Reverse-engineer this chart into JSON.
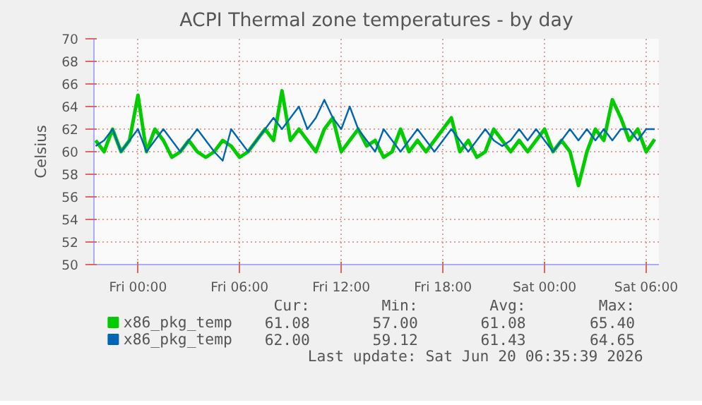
{
  "chart_data": {
    "type": "line",
    "title": "ACPI Thermal zone temperatures - by day",
    "ylabel": "Celsius",
    "x": [
      "2026-06-18T21:30",
      "2026-06-18T22:00",
      "2026-06-18T22:30",
      "2026-06-18T23:00",
      "2026-06-18T23:30",
      "2026-06-19T00:00",
      "2026-06-19T00:30",
      "2026-06-19T01:00",
      "2026-06-19T01:30",
      "2026-06-19T02:00",
      "2026-06-19T02:30",
      "2026-06-19T03:00",
      "2026-06-19T03:30",
      "2026-06-19T04:00",
      "2026-06-19T04:30",
      "2026-06-19T05:00",
      "2026-06-19T05:30",
      "2026-06-19T06:00",
      "2026-06-19T06:30",
      "2026-06-19T07:00",
      "2026-06-19T07:30",
      "2026-06-19T08:00",
      "2026-06-19T08:30",
      "2026-06-19T09:00",
      "2026-06-19T09:30",
      "2026-06-19T10:00",
      "2026-06-19T10:30",
      "2026-06-19T11:00",
      "2026-06-19T11:30",
      "2026-06-19T12:00",
      "2026-06-19T12:30",
      "2026-06-19T13:00",
      "2026-06-19T13:30",
      "2026-06-19T14:00",
      "2026-06-19T14:30",
      "2026-06-19T15:00",
      "2026-06-19T15:30",
      "2026-06-19T16:00",
      "2026-06-19T16:30",
      "2026-06-19T17:00",
      "2026-06-19T17:30",
      "2026-06-19T18:00",
      "2026-06-19T18:30",
      "2026-06-19T19:00",
      "2026-06-19T19:30",
      "2026-06-19T20:00",
      "2026-06-19T20:30",
      "2026-06-19T21:00",
      "2026-06-19T21:30",
      "2026-06-19T22:00",
      "2026-06-19T22:30",
      "2026-06-19T23:00",
      "2026-06-19T23:30",
      "2026-06-20T00:00",
      "2026-06-20T00:30",
      "2026-06-20T01:00",
      "2026-06-20T01:30",
      "2026-06-20T02:00",
      "2026-06-20T02:30",
      "2026-06-20T03:00",
      "2026-06-20T03:30",
      "2026-06-20T04:00",
      "2026-06-20T04:30",
      "2026-06-20T05:00",
      "2026-06-20T05:30",
      "2026-06-20T06:00",
      "2026-06-20T06:30"
    ],
    "series": [
      {
        "name": "x86_pkg_temp",
        "color": "#00cc00",
        "values": [
          61,
          60,
          62,
          60,
          61,
          65,
          60,
          62,
          61,
          59.5,
          60,
          61,
          60,
          59.5,
          60,
          61,
          60.5,
          59.5,
          60,
          61,
          62,
          61,
          65.4,
          61,
          62,
          61,
          60,
          62,
          63,
          60,
          61,
          62,
          60.5,
          61,
          59.5,
          60,
          62,
          60,
          61,
          60,
          61,
          62,
          63,
          60,
          61,
          59.5,
          60,
          62,
          61,
          60,
          61,
          60,
          61,
          62,
          60,
          61,
          60,
          57,
          60,
          62,
          61,
          64.6,
          63,
          61,
          62,
          60,
          61.1
        ]
      },
      {
        "name": "x86_pkg_temp",
        "color": "#0066b3",
        "values": [
          60.5,
          61,
          62,
          60,
          61,
          62,
          60,
          61,
          62,
          61,
          60,
          61,
          62,
          61,
          60,
          59.2,
          62,
          61,
          60,
          61,
          62,
          63,
          62,
          63,
          64,
          62,
          63,
          64.6,
          63,
          62,
          64,
          62,
          61,
          60,
          62,
          61,
          60,
          61,
          62,
          61,
          60,
          61,
          62,
          61,
          60,
          61,
          62,
          61,
          60.5,
          61,
          62,
          61,
          62,
          61,
          60,
          61,
          62,
          61,
          62,
          61,
          62,
          61,
          62,
          62,
          61,
          62,
          62
        ]
      }
    ],
    "xlim": [
      "2026-06-18T21:24",
      "2026-06-20T06:45"
    ],
    "xticks": [
      {
        "value": "2026-06-19T00:00",
        "label": "Fri 00:00"
      },
      {
        "value": "2026-06-19T06:00",
        "label": "Fri 06:00"
      },
      {
        "value": "2026-06-19T12:00",
        "label": "Fri 12:00"
      },
      {
        "value": "2026-06-19T18:00",
        "label": "Fri 18:00"
      },
      {
        "value": "2026-06-20T00:00",
        "label": "Sat 00:00"
      },
      {
        "value": "2026-06-20T06:00",
        "label": "Sat 06:00"
      }
    ],
    "ylim": [
      50,
      70
    ],
    "yticks": [
      50,
      52,
      54,
      56,
      58,
      60,
      62,
      64,
      66,
      68,
      70
    ],
    "grid": true,
    "legend": "bottom",
    "marker": "none",
    "line_style": "solid",
    "annotations": [
      "Cur:",
      "Min:",
      "Avg:",
      "Max:",
      "61.08",
      "57.00",
      "61.08",
      "65.40",
      "62.00",
      "59.12",
      "61.43",
      "64.65",
      "Last update: Sat Jun 20 06:35:39 2026"
    ]
  }
}
